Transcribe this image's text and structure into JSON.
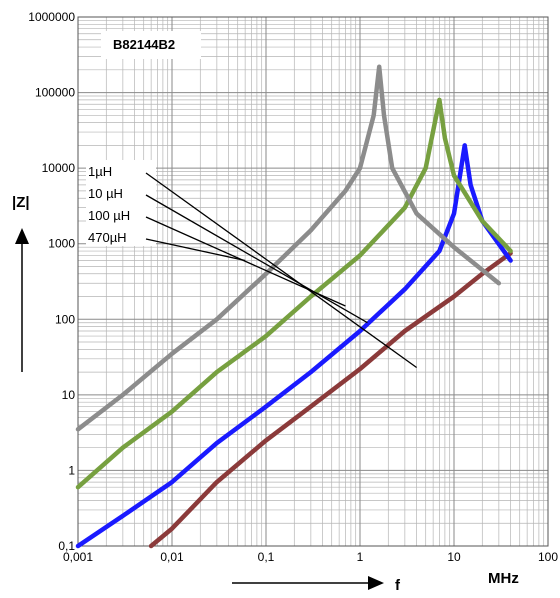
{
  "chart_data": {
    "type": "line",
    "title": "",
    "part_number": "B82144B2",
    "xlabel": "f",
    "xunit": "MHz",
    "ylabel": "|Z|",
    "x_scale": "log",
    "y_scale": "log",
    "xlim": [
      0.001,
      100
    ],
    "ylim": [
      0.1,
      1000000
    ],
    "x_ticks": [
      "0,001",
      "0,01",
      "0,1",
      "1",
      "10",
      "100"
    ],
    "y_ticks": [
      "0,1",
      "1",
      "10",
      "100",
      "1000",
      "10000",
      "100000",
      "1000000"
    ],
    "grid": true,
    "series": [
      {
        "name": "1µH",
        "color": "#8b3a3a",
        "points": [
          [
            0.006,
            0.1
          ],
          [
            0.01,
            0.17
          ],
          [
            0.03,
            0.7
          ],
          [
            0.1,
            2.5
          ],
          [
            0.3,
            7
          ],
          [
            1,
            22
          ],
          [
            3,
            70
          ],
          [
            10,
            200
          ],
          [
            20,
            400
          ],
          [
            40,
            750
          ]
        ]
      },
      {
        "name": "10 µH",
        "color": "#1a1aff",
        "points": [
          [
            0.001,
            0.1
          ],
          [
            0.003,
            0.25
          ],
          [
            0.01,
            0.7
          ],
          [
            0.03,
            2.3
          ],
          [
            0.1,
            7
          ],
          [
            0.3,
            20
          ],
          [
            1,
            70
          ],
          [
            3,
            250
          ],
          [
            7,
            800
          ],
          [
            10,
            2500
          ],
          [
            13,
            20000
          ],
          [
            15,
            6000
          ],
          [
            20,
            2000
          ],
          [
            40,
            600
          ]
        ]
      },
      {
        "name": "100 µH",
        "color": "#77a040",
        "points": [
          [
            0.001,
            0.6
          ],
          [
            0.003,
            2
          ],
          [
            0.01,
            6
          ],
          [
            0.03,
            20
          ],
          [
            0.1,
            60
          ],
          [
            0.3,
            200
          ],
          [
            1,
            700
          ],
          [
            3,
            3000
          ],
          [
            5,
            10000
          ],
          [
            7,
            80000
          ],
          [
            8,
            25000
          ],
          [
            10,
            8000
          ],
          [
            20,
            2000
          ],
          [
            40,
            800
          ]
        ]
      },
      {
        "name": "470µH",
        "color": "#8c8c8c",
        "points": [
          [
            0.001,
            3.5
          ],
          [
            0.003,
            10
          ],
          [
            0.01,
            35
          ],
          [
            0.03,
            100
          ],
          [
            0.1,
            400
          ],
          [
            0.3,
            1500
          ],
          [
            0.7,
            5000
          ],
          [
            1,
            10000
          ],
          [
            1.4,
            50000
          ],
          [
            1.6,
            220000
          ],
          [
            1.8,
            50000
          ],
          [
            2.2,
            10000
          ],
          [
            4,
            2500
          ],
          [
            10,
            900
          ],
          [
            30,
            300
          ]
        ]
      }
    ]
  }
}
